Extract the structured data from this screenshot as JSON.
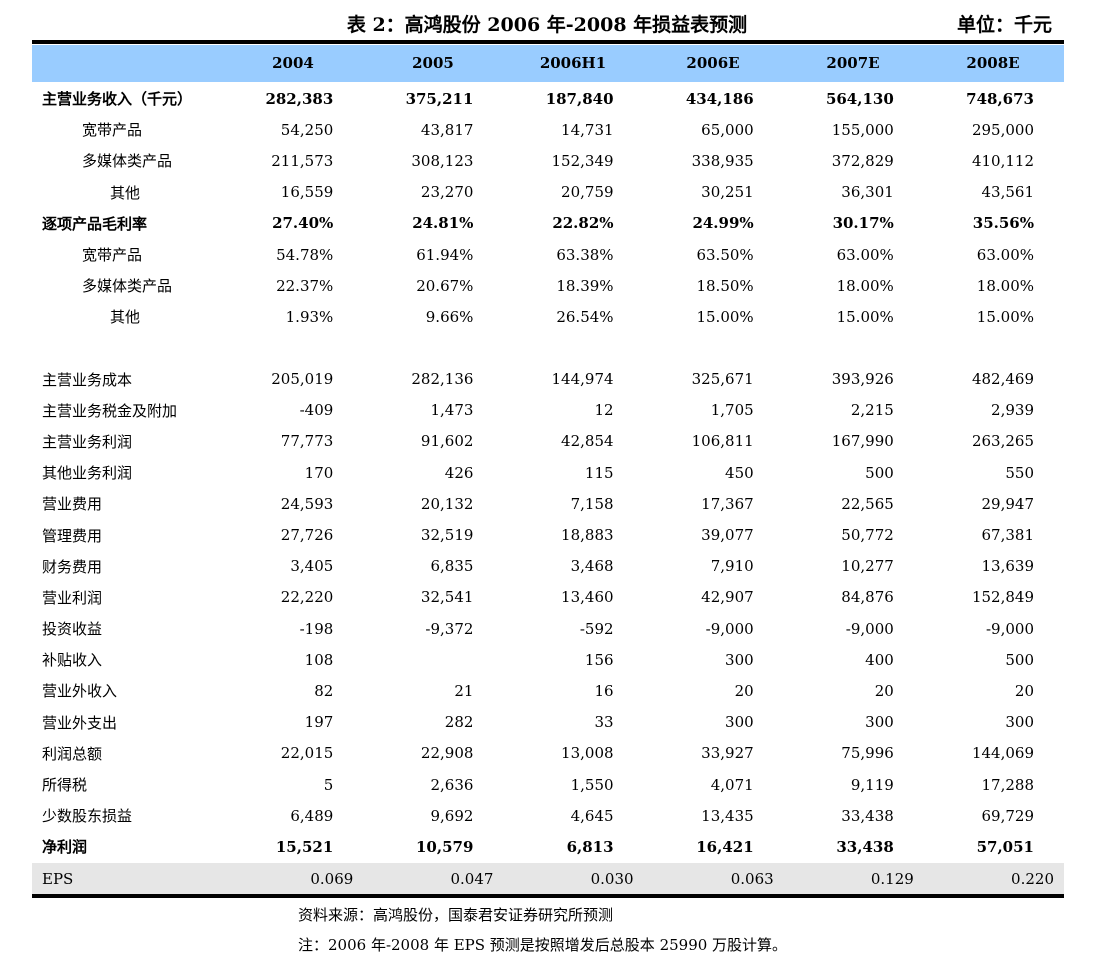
{
  "title": "表 2：高鸿股份 2006 年-2008 年损益表预测",
  "unit": "单位：千元",
  "columns": [
    "2004",
    "2005",
    "2006H1",
    "2006E",
    "2007E",
    "2008E"
  ],
  "rows": [
    {
      "label": "主营业务收入（千元）",
      "style": "b",
      "values": [
        "282,383",
        "375,211",
        "187,840",
        "434,186",
        "564,130",
        "748,673"
      ]
    },
    {
      "label": "宽带产品",
      "style": "sub",
      "values": [
        "54,250",
        "43,817",
        "14,731",
        "65,000",
        "155,000",
        "295,000"
      ]
    },
    {
      "label": "多媒体类产品",
      "style": "sub",
      "values": [
        "211,573",
        "308,123",
        "152,349",
        "338,935",
        "372,829",
        "410,112"
      ]
    },
    {
      "label": "其他",
      "style": "sub2",
      "values": [
        "16,559",
        "23,270",
        "20,759",
        "30,251",
        "36,301",
        "43,561"
      ]
    },
    {
      "label": "逐项产品毛利率",
      "style": "b",
      "values": [
        "27.40%",
        "24.81%",
        "22.82%",
        "24.99%",
        "30.17%",
        "35.56%"
      ]
    },
    {
      "label": "宽带产品",
      "style": "sub",
      "values": [
        "54.78%",
        "61.94%",
        "63.38%",
        "63.50%",
        "63.00%",
        "63.00%"
      ]
    },
    {
      "label": "多媒体类产品",
      "style": "sub",
      "values": [
        "22.37%",
        "20.67%",
        "18.39%",
        "18.50%",
        "18.00%",
        "18.00%"
      ]
    },
    {
      "label": "其他",
      "style": "sub2",
      "values": [
        "1.93%",
        "9.66%",
        "26.54%",
        "15.00%",
        "15.00%",
        "15.00%"
      ]
    },
    {
      "label": "",
      "style": "blank",
      "values": [
        "",
        "",
        "",
        "",
        "",
        ""
      ]
    },
    {
      "label": "主营业务成本",
      "style": "",
      "values": [
        "205,019",
        "282,136",
        "144,974",
        "325,671",
        "393,926",
        "482,469"
      ]
    },
    {
      "label": "主营业务税金及附加",
      "style": "",
      "values": [
        "-409",
        "1,473",
        "12",
        "1,705",
        "2,215",
        "2,939"
      ]
    },
    {
      "label": "主营业务利润",
      "style": "",
      "values": [
        "77,773",
        "91,602",
        "42,854",
        "106,811",
        "167,990",
        "263,265"
      ]
    },
    {
      "label": "其他业务利润",
      "style": "",
      "values": [
        "170",
        "426",
        "115",
        "450",
        "500",
        "550"
      ]
    },
    {
      "label": "营业费用",
      "style": "",
      "values": [
        "24,593",
        "20,132",
        "7,158",
        "17,367",
        "22,565",
        "29,947"
      ]
    },
    {
      "label": "管理费用",
      "style": "",
      "values": [
        "27,726",
        "32,519",
        "18,883",
        "39,077",
        "50,772",
        "67,381"
      ]
    },
    {
      "label": "财务费用",
      "style": "",
      "values": [
        "3,405",
        "6,835",
        "3,468",
        "7,910",
        "10,277",
        "13,639"
      ]
    },
    {
      "label": "营业利润",
      "style": "",
      "values": [
        "22,220",
        "32,541",
        "13,460",
        "42,907",
        "84,876",
        "152,849"
      ]
    },
    {
      "label": "投资收益",
      "style": "",
      "values": [
        "-198",
        "-9,372",
        "-592",
        "-9,000",
        "-9,000",
        "-9,000"
      ]
    },
    {
      "label": "补贴收入",
      "style": "",
      "values": [
        "108",
        "",
        "156",
        "300",
        "400",
        "500"
      ]
    },
    {
      "label": "营业外收入",
      "style": "",
      "values": [
        "82",
        "21",
        "16",
        "20",
        "20",
        "20"
      ]
    },
    {
      "label": "营业外支出",
      "style": "",
      "values": [
        "197",
        "282",
        "33",
        "300",
        "300",
        "300"
      ]
    },
    {
      "label": "利润总额",
      "style": "",
      "values": [
        "22,015",
        "22,908",
        "13,008",
        "33,927",
        "75,996",
        "144,069"
      ]
    },
    {
      "label": "所得税",
      "style": "",
      "values": [
        "5",
        "2,636",
        "1,550",
        "4,071",
        "9,119",
        "17,288"
      ]
    },
    {
      "label": "少数股东损益",
      "style": "",
      "values": [
        "6,489",
        "9,692",
        "4,645",
        "13,435",
        "33,438",
        "69,729"
      ]
    },
    {
      "label": "净利润",
      "style": "b",
      "values": [
        "15,521",
        "10,579",
        "6,813",
        "16,421",
        "33,438",
        "57,051"
      ]
    },
    {
      "label": "EPS",
      "style": "eps",
      "values": [
        "0.069",
        "0.047",
        "0.030",
        "0.063",
        "0.129",
        "0.220"
      ]
    }
  ],
  "source": "资料来源：高鸿股份，国泰君安证券研究所预测",
  "note": "注：2006 年-2008 年 EPS 预测是按照增发后总股本 25990 万股计算。",
  "colors": {
    "header_bg": "#99ccff",
    "eps_bg": "#e6e6e6"
  }
}
